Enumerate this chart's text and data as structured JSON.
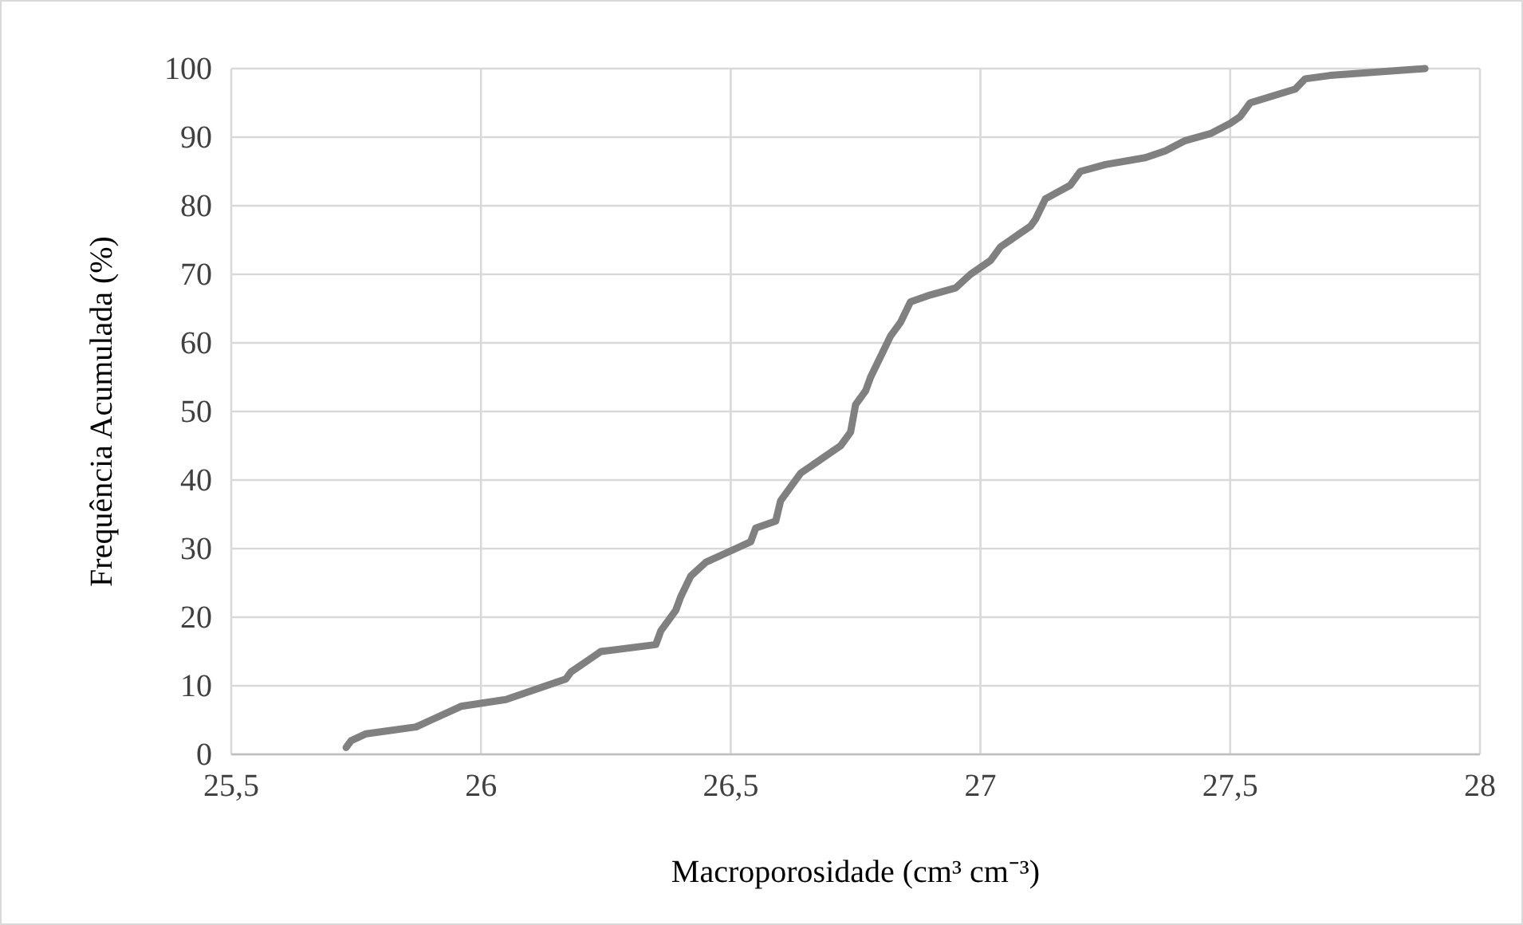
{
  "chart_data": {
    "type": "line",
    "xlabel": "Macroporosidade (cm³ cm⁻³)",
    "ylabel": "Frequência Acumulada (%)",
    "x": [
      25.73,
      25.74,
      25.77,
      25.87,
      25.9,
      25.96,
      26.05,
      26.17,
      26.18,
      26.22,
      26.24,
      26.35,
      26.36,
      26.39,
      26.4,
      26.42,
      26.45,
      26.51,
      26.54,
      26.55,
      26.59,
      26.6,
      26.62,
      26.64,
      26.68,
      26.72,
      26.74,
      26.75,
      26.77,
      26.78,
      26.8,
      26.82,
      26.84,
      26.86,
      26.9,
      26.95,
      26.98,
      27.02,
      27.04,
      27.1,
      27.11,
      27.13,
      27.18,
      27.2,
      27.25,
      27.33,
      27.37,
      27.41,
      27.46,
      27.5,
      27.52,
      27.54,
      27.63,
      27.65,
      27.7,
      27.89
    ],
    "series": [
      {
        "color": "#808080",
        "values": [
          1,
          2,
          3,
          4,
          5,
          7,
          8,
          11,
          12,
          14,
          15,
          16,
          18,
          21,
          23,
          26,
          28,
          30,
          31,
          33,
          34,
          37,
          39,
          41,
          43,
          45,
          47,
          51,
          53,
          55,
          58,
          61,
          63,
          66,
          67,
          68,
          70,
          72,
          74,
          77,
          78,
          81,
          83,
          85,
          86,
          87,
          88,
          89.5,
          90.5,
          92,
          93,
          95,
          97,
          98.5,
          99,
          100
        ]
      }
    ],
    "xlim": [
      25.5,
      28
    ],
    "xticks": [
      {
        "value": 25.5,
        "label": "25,5"
      },
      26,
      {
        "value": 26.5,
        "label": "26,5"
      },
      27,
      {
        "value": 27.5,
        "label": "27,5"
      },
      28
    ],
    "ylim": [
      0,
      100
    ],
    "yticks": [
      0,
      10,
      20,
      30,
      40,
      50,
      60,
      70,
      80,
      90,
      100
    ],
    "grid": true,
    "marker": "none",
    "line_style": "solid"
  }
}
